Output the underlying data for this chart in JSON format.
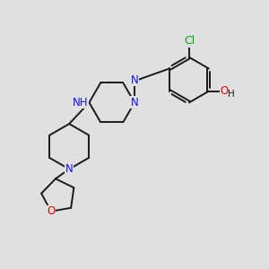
{
  "background_color": "#e0e0e0",
  "bond_color": "#1a1a1a",
  "bond_width": 1.4,
  "atom_colors": {
    "N": "#1010ff",
    "O": "#dd0000",
    "Cl": "#00aa00",
    "H_text": "#1a1a1a"
  },
  "font_size": 8.5,
  "figsize": [
    3.0,
    3.0
  ],
  "dpi": 100
}
